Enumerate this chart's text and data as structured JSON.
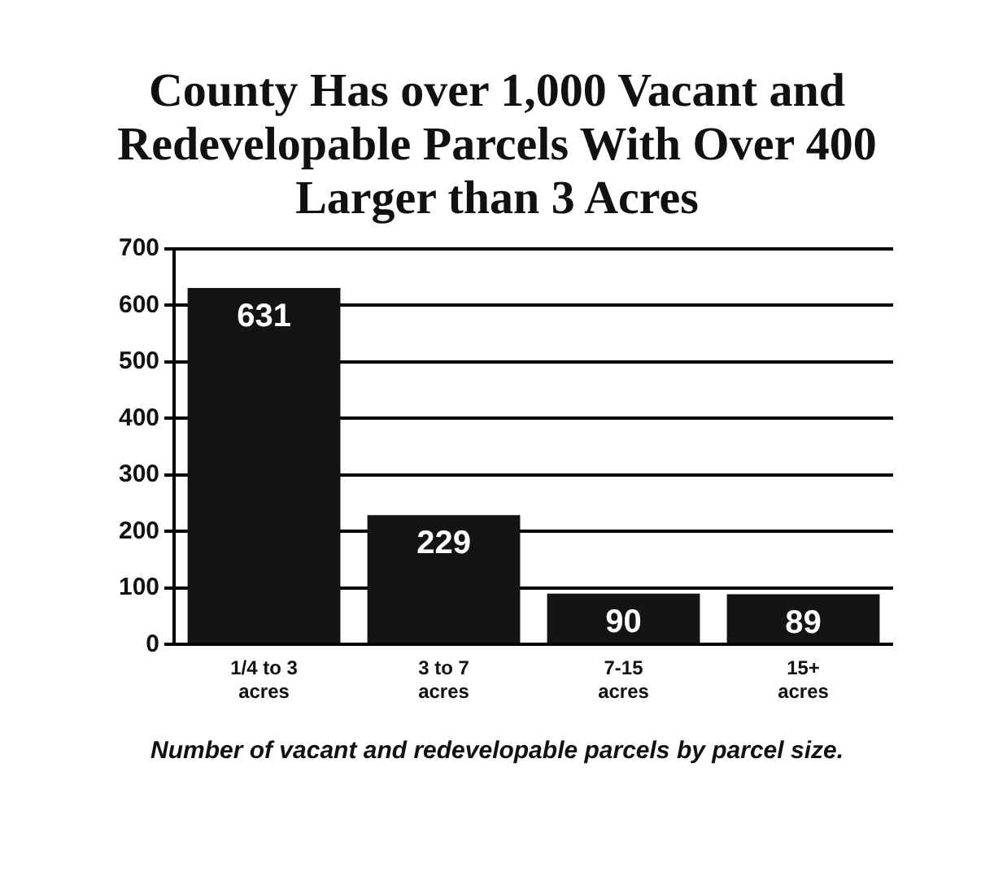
{
  "chart_data": {
    "type": "bar",
    "title": "County Has over 1,000 Vacant and Redevelopable Parcels With Over 400 Larger than 3 Acres",
    "categories": [
      "1/4 to 3 acres",
      "3 to 7 acres",
      "7-15 acres",
      "15+ acres"
    ],
    "values": [
      631,
      229,
      90,
      89
    ],
    "color": "#141414",
    "ylim": [
      0,
      700
    ],
    "yticks": [
      0,
      100,
      200,
      300,
      400,
      500,
      600,
      700
    ],
    "grid": "y",
    "data_labels": true,
    "annotations": [
      "Number of vacant and redevelopable parcels by parcel size."
    ]
  }
}
